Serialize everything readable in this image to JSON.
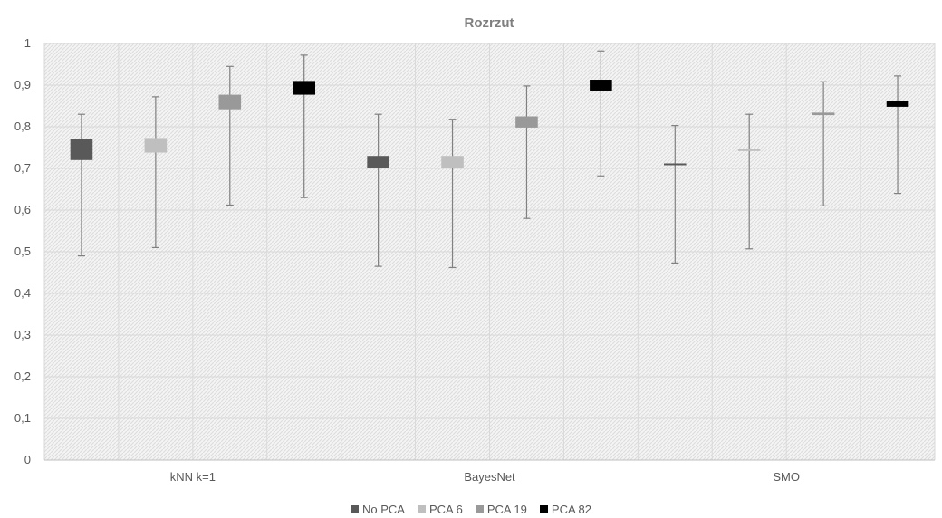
{
  "chart_data": {
    "type": "box",
    "title": "Rozrzut",
    "categories": [
      "kNN k=1",
      "BayesNet",
      "SMO"
    ],
    "ylim": [
      0,
      1
    ],
    "yticks": [
      "0",
      "0,1",
      "0,2",
      "0,3",
      "0,4",
      "0,5",
      "0,6",
      "0,7",
      "0,8",
      "0,9",
      "1"
    ],
    "grid": true,
    "legend_position": "bottom",
    "series": [
      {
        "name": "No PCA",
        "color": "#595959",
        "values": [
          {
            "min": 0.49,
            "q1": 0.72,
            "q3": 0.77,
            "max": 0.83
          },
          {
            "min": 0.465,
            "q1": 0.7,
            "q3": 0.73,
            "max": 0.83
          },
          {
            "min": 0.473,
            "q1": 0.708,
            "q3": 0.712,
            "max": 0.803
          }
        ]
      },
      {
        "name": "PCA 6",
        "color": "#bfbfbf",
        "values": [
          {
            "min": 0.51,
            "q1": 0.738,
            "q3": 0.773,
            "max": 0.872
          },
          {
            "min": 0.462,
            "q1": 0.7,
            "q3": 0.73,
            "max": 0.818
          },
          {
            "min": 0.507,
            "q1": 0.743,
            "q3": 0.746,
            "max": 0.83
          }
        ]
      },
      {
        "name": "PCA 19",
        "color": "#999999",
        "values": [
          {
            "min": 0.612,
            "q1": 0.842,
            "q3": 0.877,
            "max": 0.945
          },
          {
            "min": 0.58,
            "q1": 0.798,
            "q3": 0.825,
            "max": 0.898
          },
          {
            "min": 0.61,
            "q1": 0.828,
            "q3": 0.834,
            "max": 0.908
          }
        ]
      },
      {
        "name": "PCA 82",
        "color": "#000000",
        "values": [
          {
            "min": 0.63,
            "q1": 0.877,
            "q3": 0.91,
            "max": 0.972
          },
          {
            "min": 0.682,
            "q1": 0.887,
            "q3": 0.913,
            "max": 0.982
          },
          {
            "min": 0.64,
            "q1": 0.848,
            "q3": 0.862,
            "max": 0.922
          }
        ]
      }
    ]
  }
}
